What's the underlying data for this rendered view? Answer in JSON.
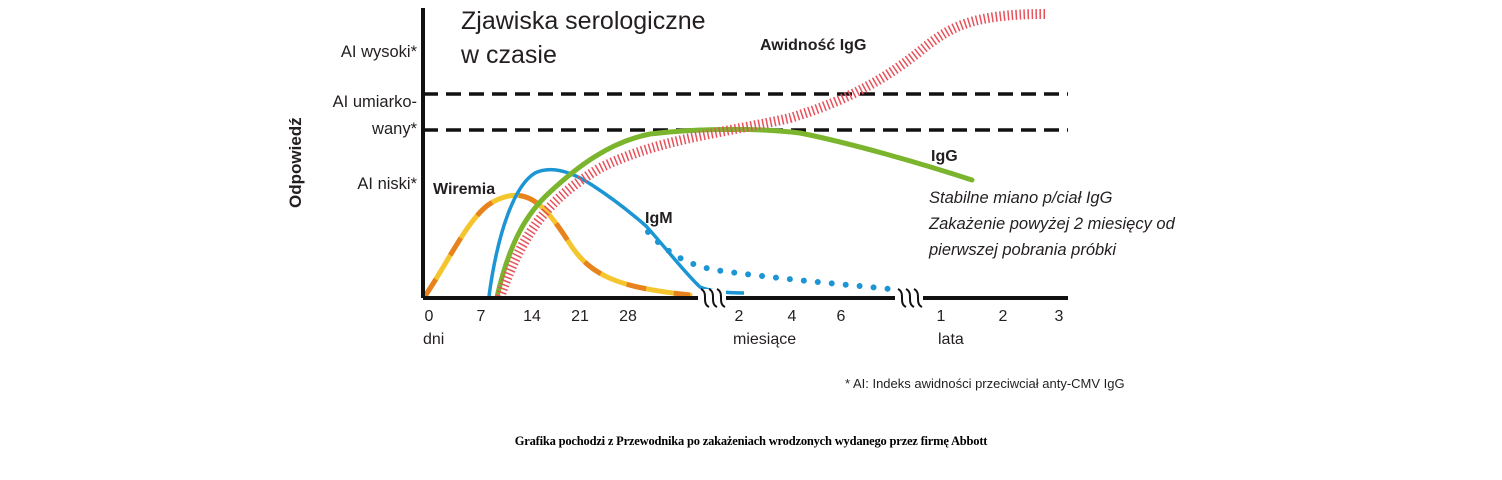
{
  "chart_data": {
    "type": "line",
    "title": "Zjawiska serologiczne w czasie",
    "title_lines": [
      "Zjawiska serologiczne",
      "w czasie"
    ],
    "ylabel": "Odpowiedź",
    "y_levels": [
      {
        "label_lines": [
          "AI wysoki*"
        ]
      },
      {
        "label_lines": [
          "AI umiarko-",
          "wany*"
        ]
      },
      {
        "label_lines": [
          "AI niski*"
        ]
      }
    ],
    "x_ticks": {
      "days": [
        "0",
        "7",
        "14",
        "21",
        "28"
      ],
      "months": [
        "2",
        "4",
        "6"
      ],
      "years": [
        "1",
        "2",
        "3"
      ]
    },
    "x_units": {
      "days": "dni",
      "months": "miesiące",
      "years": "lata"
    },
    "series": [
      {
        "name": "Wiremia",
        "color": "#f5b82e",
        "dash_color": "#e8821e"
      },
      {
        "name": "IgM",
        "color": "#1b95d3"
      },
      {
        "name": "IgG",
        "color": "#7bb52e"
      },
      {
        "name": "Awidność IgG",
        "color": "#e8505b"
      }
    ],
    "annotation_lines": [
      "Stabilne miano p/ciał IgG",
      "Zakażenie powyżej 2 miesięcy od",
      "pierwszej pobrania próbki"
    ],
    "footnote": "* AI: Indeks awidności przeciwciał anty-CMV IgG",
    "grid": false
  },
  "caption": "Grafika pochodzi z Przewodnika po zakażeniach wrodzonych wydanego przez firmę Abbott"
}
